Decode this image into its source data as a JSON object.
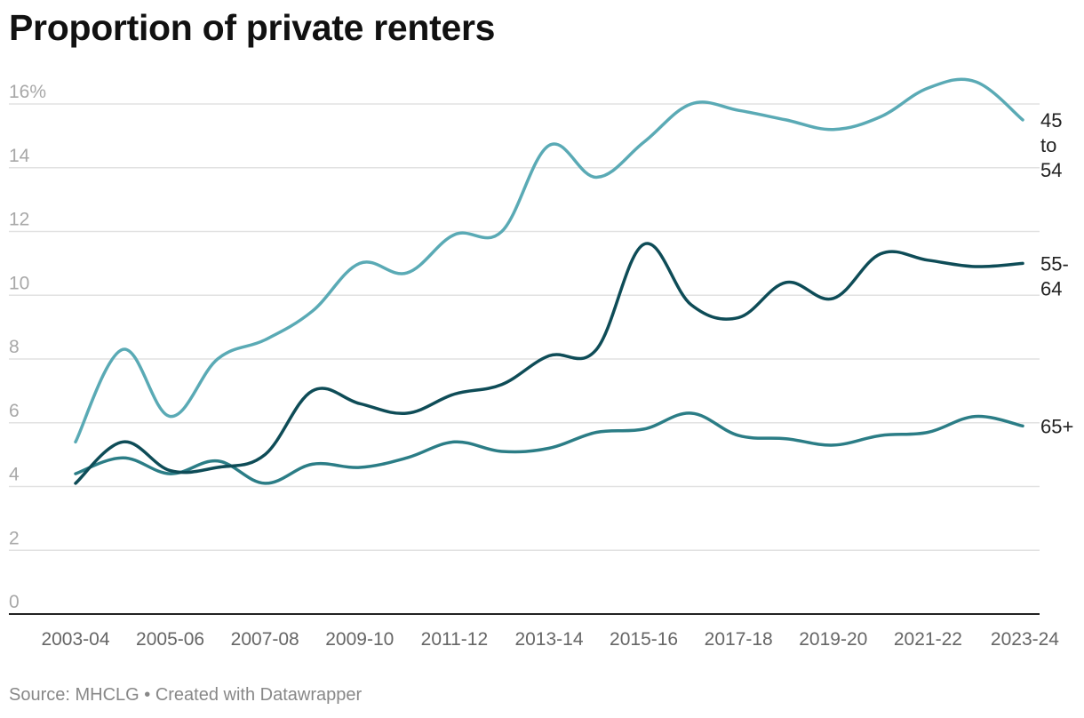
{
  "chart_data": {
    "type": "line",
    "title": "Proportion of private renters",
    "xlabel": "",
    "ylabel": "",
    "ylim": [
      0,
      16
    ],
    "y_ticks": [
      0,
      2,
      4,
      6,
      8,
      10,
      12,
      14,
      16
    ],
    "y_tick_labels": [
      "0",
      "2",
      "4",
      "6",
      "8",
      "10",
      "12",
      "14",
      "16%"
    ],
    "categories": [
      "2003-04",
      "2004-05",
      "2005-06",
      "2006-07",
      "2007-08",
      "2008-09",
      "2009-10",
      "2010-11",
      "2011-12",
      "2012-13",
      "2013-14",
      "2014-15",
      "2015-16",
      "2016-17",
      "2017-18",
      "2018-19",
      "2019-20",
      "2020-21",
      "2021-22",
      "2022-23",
      "2023-24"
    ],
    "x_tick_labels": [
      "2003-04",
      "2005-06",
      "2007-08",
      "2009-10",
      "2011-12",
      "2013-14",
      "2015-16",
      "2017-18",
      "2019-20",
      "2021-22",
      "2023-24"
    ],
    "series": [
      {
        "name": "45 to 54",
        "label_lines": [
          "45",
          "to",
          "54"
        ],
        "color": "#5aaab5",
        "values": [
          5.4,
          8.3,
          6.2,
          8.0,
          8.6,
          9.5,
          11.0,
          10.7,
          11.9,
          12.0,
          14.7,
          13.7,
          14.8,
          16.0,
          15.8,
          15.5,
          15.2,
          15.6,
          16.5,
          16.7,
          15.5
        ]
      },
      {
        "name": "55-64",
        "label_lines": [
          "55-",
          "64"
        ],
        "color": "#0e4c57",
        "values": [
          4.1,
          5.4,
          4.5,
          4.6,
          5.0,
          7.0,
          6.6,
          6.3,
          6.9,
          7.2,
          8.1,
          8.3,
          11.6,
          9.7,
          9.3,
          10.4,
          9.9,
          11.3,
          11.1,
          10.9,
          11.0
        ]
      },
      {
        "name": "65+",
        "label_lines": [
          "65+"
        ],
        "color": "#2b7d86",
        "values": [
          4.4,
          4.9,
          4.4,
          4.8,
          4.1,
          4.7,
          4.6,
          4.9,
          5.4,
          5.1,
          5.2,
          5.7,
          5.8,
          6.3,
          5.6,
          5.5,
          5.3,
          5.6,
          5.7,
          6.2,
          5.9
        ]
      }
    ],
    "grid": true,
    "legend": "direct labels at right end of lines"
  },
  "footer": {
    "text": "Source: MHCLG • Created with Datawrapper"
  }
}
